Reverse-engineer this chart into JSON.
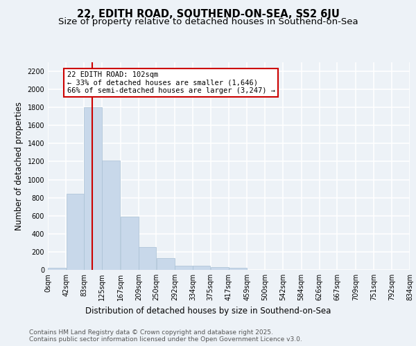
{
  "title": "22, EDITH ROAD, SOUTHEND-ON-SEA, SS2 6JU",
  "subtitle": "Size of property relative to detached houses in Southend-on-Sea",
  "xlabel": "Distribution of detached houses by size in Southend-on-Sea",
  "ylabel": "Number of detached properties",
  "bar_color": "#c8d8ea",
  "bar_edge_color": "#a8c0d4",
  "vline_x": 102,
  "vline_color": "#cc0000",
  "annotation_text": "22 EDITH ROAD: 102sqm\n← 33% of detached houses are smaller (1,646)\n66% of semi-detached houses are larger (3,247) →",
  "annotation_box_color": "#cc0000",
  "background_color": "#edf2f7",
  "grid_color": "#ffffff",
  "bin_edges": [
    0,
    42,
    83,
    125,
    167,
    209,
    250,
    292,
    334,
    375,
    417,
    459,
    500,
    542,
    584,
    626,
    667,
    709,
    751,
    792,
    834
  ],
  "bar_heights": [
    25,
    840,
    1800,
    1210,
    590,
    255,
    130,
    45,
    45,
    30,
    20,
    0,
    0,
    0,
    0,
    0,
    0,
    0,
    0,
    0
  ],
  "tick_labels": [
    "0sqm",
    "42sqm",
    "83sqm",
    "125sqm",
    "167sqm",
    "209sqm",
    "250sqm",
    "292sqm",
    "334sqm",
    "375sqm",
    "417sqm",
    "459sqm",
    "500sqm",
    "542sqm",
    "584sqm",
    "626sqm",
    "667sqm",
    "709sqm",
    "751sqm",
    "792sqm",
    "834sqm"
  ],
  "ylim": [
    0,
    2300
  ],
  "yticks": [
    0,
    200,
    400,
    600,
    800,
    1000,
    1200,
    1400,
    1600,
    1800,
    2000,
    2200
  ],
  "footer_text": "Contains HM Land Registry data © Crown copyright and database right 2025.\nContains public sector information licensed under the Open Government Licence v3.0.",
  "title_fontsize": 10.5,
  "subtitle_fontsize": 9.5,
  "ylabel_fontsize": 8.5,
  "xlabel_fontsize": 8.5,
  "tick_fontsize": 7,
  "footer_fontsize": 6.5,
  "ann_fontsize": 7.5
}
